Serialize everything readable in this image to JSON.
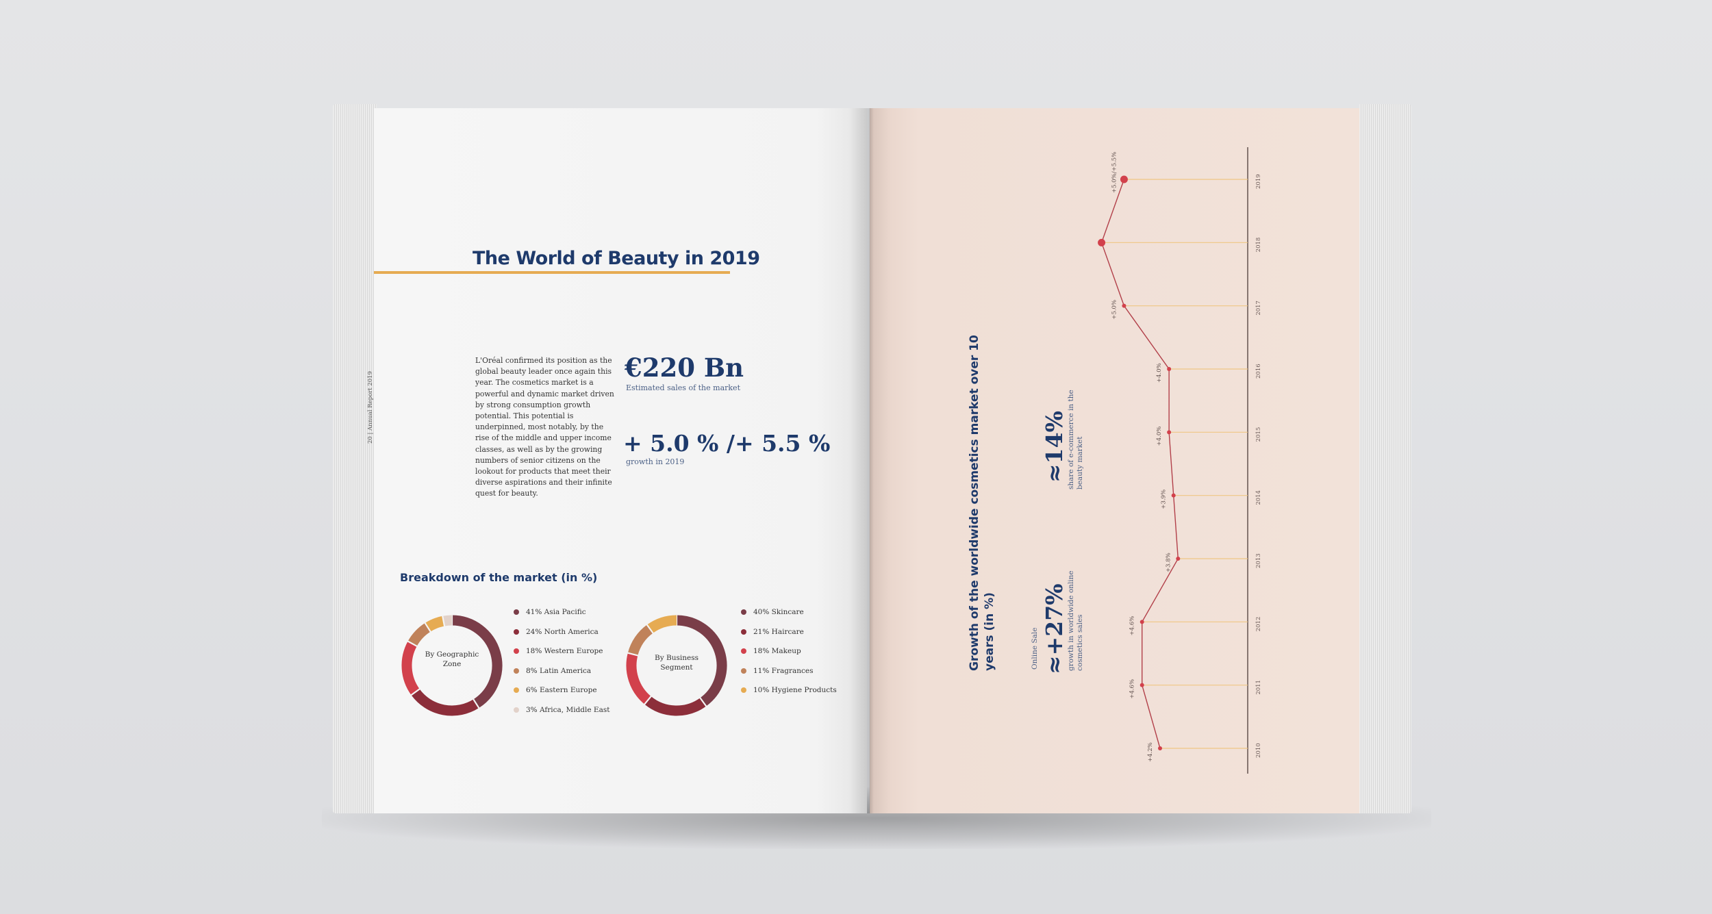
{
  "left_page": {
    "title": "The World of Beauty in 2019",
    "folio": "20 | Annual Report 2019",
    "body_text": "L'Oréal confirmed its position as the global beauty leader once again this year. The cosmetics market is a powerful and dynamic market driven by strong consumption growth potential. This potential is underpinned, most notably, by the rise of the middle and upper income classes, as well as by the growing numbers of senior citizens on the lookout for products that meet their diverse aspirations and their infinite quest for beauty.",
    "stat1_value": "€220 Bn",
    "stat1_caption": "Estimated sales of the market",
    "stat2_value": "+ 5.0 % /+ 5.5 %",
    "stat2_caption": "growth in 2019",
    "breakdown_title": "Breakdown of the market (in %)",
    "colors": {
      "dark_plum": "#7a3d48",
      "dark_red": "#8c2e3a",
      "red": "#d2414c",
      "tan": "#c0825a",
      "gold": "#e6ab52",
      "light": "#e2d2ca"
    }
  },
  "chart_data": [
    {
      "type": "pie",
      "title": "By Geographic Zone",
      "labels": [
        "Asia Pacific",
        "North America",
        "Western Europe",
        "Latin America",
        "Eastern Europe",
        "Africa, Middle East"
      ],
      "values": [
        41,
        24,
        18,
        8,
        6,
        3
      ],
      "legend": [
        "41% Asia Pacific",
        "24% North America",
        "18% Western Europe",
        "8% Latin America",
        "6% Eastern Europe",
        "3% Africa, Middle East"
      ],
      "colors": [
        "#7a3d48",
        "#8c2e3a",
        "#d2414c",
        "#c0825a",
        "#e6ab52",
        "#e2d2ca"
      ],
      "center_lines": [
        "By Geographic",
        "Zone"
      ]
    },
    {
      "type": "pie",
      "title": "By Business Segment",
      "labels": [
        "Skincare",
        "Haircare",
        "Makeup",
        "Fragrances",
        "Hygiene Products"
      ],
      "values": [
        40,
        21,
        18,
        11,
        10
      ],
      "legend": [
        "40% Skincare",
        "21% Haircare",
        "18% Makeup",
        "11% Fragrances",
        "10% Hygiene Products"
      ],
      "colors": [
        "#7a3d48",
        "#8c2e3a",
        "#d2414c",
        "#c0825a",
        "#e6ab52"
      ],
      "center_lines": [
        "By Business",
        "Segment"
      ]
    },
    {
      "type": "line",
      "title": "Growth of the worldwide cosmetics market over 10 years (in %)",
      "x": [
        "2010",
        "2011",
        "2012",
        "2013",
        "2014",
        "2015",
        "2016",
        "2017",
        "2018",
        "2019"
      ],
      "values": [
        4.2,
        4.6,
        4.6,
        3.8,
        3.9,
        4.0,
        4.0,
        5.0,
        5.5,
        5.0
      ],
      "value_labels": [
        "+4.2%",
        "+4.6%",
        "+4.6%",
        "+3.8%",
        "+3.9%",
        "+4.0%",
        "+4.0%",
        "+5.0%",
        "+5.5%",
        "+5.0%/+5.5%"
      ],
      "highlight": [
        "2018",
        "2019"
      ],
      "line_color": "#b2404a",
      "guide_color": "#efc684"
    }
  ],
  "right_page": {
    "chart_title_line1": "Growth of the worldwide cosmetics market over 10",
    "chart_title_line2": "years (in %)",
    "stat_ecommerce_value": "≈14%",
    "stat_ecommerce_caption1": "share of e-commerce in the",
    "stat_ecommerce_caption2": "beauty market",
    "online_label": "Online Sale",
    "stat_online_value": "≈+27%",
    "stat_online_caption1": "growth in worldwide online",
    "stat_online_caption2": "cosmetics sales"
  }
}
